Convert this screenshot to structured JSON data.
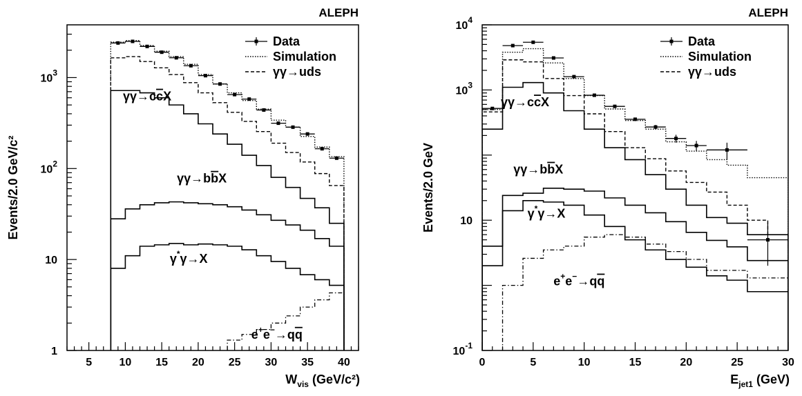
{
  "chart_data": [
    {
      "type": "line",
      "experiment_label": "ALEPH",
      "ylabel": "Events/2.0 GeV/c²",
      "xlabel": "W",
      "xlabel_sub": "vis",
      "xlabel_unit": " (GeV/c²)",
      "x_range": [
        2,
        42
      ],
      "y_range": [
        1,
        3800
      ],
      "y_scale": "log",
      "x_ticks": [
        {
          "v": 5,
          "t": "5"
        },
        {
          "v": 10,
          "t": "10"
        },
        {
          "v": 15,
          "t": "15"
        },
        {
          "v": 20,
          "t": "20"
        },
        {
          "v": 25,
          "t": "25"
        },
        {
          "v": 30,
          "t": "30"
        },
        {
          "v": 35,
          "t": "35"
        },
        {
          "v": 40,
          "t": "40"
        }
      ],
      "y_ticks": [
        {
          "v": 1,
          "t": "1"
        },
        {
          "v": 10,
          "t": "10"
        },
        {
          "v": 100,
          "t": "10",
          "sup": "2"
        },
        {
          "v": 1000,
          "t": "10",
          "sup": "3"
        }
      ],
      "legend": [
        {
          "label": "Data",
          "kind": "data"
        },
        {
          "label": "Simulation",
          "kind": "dotted"
        },
        {
          "label": "γγ→uds",
          "kind": "dashed"
        }
      ],
      "bin_edges": [
        8,
        10,
        12,
        14,
        16,
        18,
        20,
        22,
        24,
        26,
        28,
        30,
        32,
        34,
        36,
        38,
        40
      ],
      "series": [
        {
          "key": "simulation",
          "style": "dotted",
          "values": [
            2450,
            2550,
            2250,
            1950,
            1700,
            1400,
            1080,
            850,
            680,
            560,
            450,
            340,
            285,
            225,
            172,
            135
          ]
        },
        {
          "key": "uds",
          "style": "dashed",
          "values": [
            1650,
            1700,
            1500,
            1280,
            1080,
            880,
            680,
            530,
            415,
            330,
            255,
            190,
            150,
            118,
            88,
            65
          ]
        },
        {
          "key": "ccX",
          "style": "solid",
          "values": [
            720,
            720,
            680,
            600,
            500,
            400,
            310,
            240,
            185,
            140,
            108,
            80,
            62,
            47,
            37,
            25
          ]
        },
        {
          "key": "bbX",
          "style": "solid",
          "values": [
            28,
            36,
            40,
            42,
            43,
            42,
            41,
            40,
            38,
            35,
            31,
            27,
            24,
            21,
            17,
            14
          ]
        },
        {
          "key": "gstarX",
          "style": "solid",
          "values": [
            8,
            11,
            14,
            14.5,
            15,
            14.5,
            14.8,
            14.5,
            14,
            12.8,
            11,
            9.5,
            8,
            6.8,
            6,
            5.2
          ]
        },
        {
          "key": "ee_qq",
          "style": "dashdot",
          "values": [
            null,
            null,
            null,
            null,
            null,
            null,
            null,
            null,
            1.3,
            1.5,
            1.7,
            2.0,
            2.4,
            3.0,
            3.6,
            4.3
          ]
        }
      ],
      "data_points": [
        {
          "x": 9,
          "y": 2400
        },
        {
          "x": 11,
          "y": 2500
        },
        {
          "x": 13,
          "y": 2200
        },
        {
          "x": 15,
          "y": 1900
        },
        {
          "x": 17,
          "y": 1650
        },
        {
          "x": 19,
          "y": 1350
        },
        {
          "x": 21,
          "y": 1050
        },
        {
          "x": 23,
          "y": 850
        },
        {
          "x": 25,
          "y": 650
        },
        {
          "x": 27,
          "y": 580
        },
        {
          "x": 29,
          "y": 440
        },
        {
          "x": 31,
          "y": 315
        },
        {
          "x": 33,
          "y": 285
        },
        {
          "x": 35,
          "y": 240
        },
        {
          "x": 37,
          "y": 165
        },
        {
          "x": 39,
          "y": 130
        }
      ],
      "annotations": [
        {
          "key": "ccX",
          "base": "γγ→c",
          "bar": "c",
          "rest": "X",
          "x": 13,
          "y": 560
        },
        {
          "key": "bbX",
          "base": "γγ→b",
          "bar": "b",
          "rest": "X",
          "x": 20.5,
          "y": 70
        },
        {
          "key": "gstarX",
          "base": "γ",
          "sup": "*",
          "rest": "γ→X",
          "x": 18.7,
          "y": 9.2
        },
        {
          "key": "ee_qq",
          "base": "e",
          "sup": "+",
          "base2": "e",
          "sup2": "−",
          "rest": "→q",
          "bar": "q",
          "x": 30.8,
          "y": 1.35
        }
      ]
    },
    {
      "type": "line",
      "experiment_label": "ALEPH",
      "ylabel": "Events/2.0 GeV",
      "xlabel": "E",
      "xlabel_sub": "jet1",
      "xlabel_unit": " (GeV)",
      "x_range": [
        0,
        30
      ],
      "y_range": [
        0.1,
        10000
      ],
      "y_scale": "log",
      "x_ticks": [
        {
          "v": 0,
          "t": "0"
        },
        {
          "v": 5,
          "t": "5"
        },
        {
          "v": 10,
          "t": "10"
        },
        {
          "v": 15,
          "t": "15"
        },
        {
          "v": 20,
          "t": "20"
        },
        {
          "v": 25,
          "t": "25"
        },
        {
          "v": 30,
          "t": "30"
        }
      ],
      "y_ticks": [
        {
          "v": 0.1,
          "t": "10",
          "sup": "-1"
        },
        {
          "v": 10,
          "t": "10"
        },
        {
          "v": 1000,
          "t": "10",
          "sup": "3"
        },
        {
          "v": 10000,
          "t": "10",
          "sup": "4"
        }
      ],
      "legend": [
        {
          "label": "Data",
          "kind": "data"
        },
        {
          "label": "Simulation",
          "kind": "dotted"
        },
        {
          "label": "γγ→uds",
          "kind": "dashed"
        }
      ],
      "bin_edges": [
        0,
        2,
        4,
        6,
        8,
        10,
        12,
        14,
        16,
        18,
        20,
        22,
        24,
        26,
        28,
        30
      ],
      "series": [
        {
          "key": "simulation",
          "style": "dotted",
          "values": [
            500,
            3800,
            4300,
            2600,
            1500,
            820,
            510,
            340,
            250,
            160,
            115,
            85,
            70,
            45,
            45
          ]
        },
        {
          "key": "uds",
          "style": "dashed",
          "values": [
            460,
            2900,
            2700,
            1500,
            820,
            430,
            230,
            130,
            88,
            57,
            38,
            27,
            17,
            10,
            6
          ]
        },
        {
          "key": "ccX",
          "style": "solid",
          "values": [
            250,
            1100,
            1300,
            900,
            480,
            250,
            130,
            85,
            50,
            30,
            17,
            11,
            9,
            6,
            6
          ]
        },
        {
          "key": "bbX",
          "style": "solid",
          "values": [
            4,
            24,
            26,
            31,
            30,
            28,
            22,
            17,
            13,
            9.5,
            6.5,
            4.9,
            3.9,
            2.4,
            2.4
          ]
        },
        {
          "key": "gstarX",
          "style": "solid",
          "values": [
            2,
            14,
            20,
            19,
            17,
            12,
            8,
            5,
            3.5,
            2.5,
            1.9,
            1.4,
            1.2,
            0.8,
            0.8
          ]
        },
        {
          "key": "ee_qq",
          "style": "dashdot",
          "values": [
            null,
            1,
            2.6,
            3.5,
            4,
            5.5,
            6,
            5.5,
            4.3,
            3.3,
            2.5,
            1.7,
            1.7,
            1.3,
            1.3
          ]
        }
      ],
      "data_points": [
        {
          "x": 1,
          "y": 520,
          "xerr": 1,
          "yerr": [
            20,
            20
          ]
        },
        {
          "x": 3,
          "y": 4800,
          "xerr": 1,
          "yerr": [
            70,
            70
          ]
        },
        {
          "x": 5,
          "y": 5400,
          "xerr": 1,
          "yerr": [
            70,
            70
          ]
        },
        {
          "x": 7,
          "y": 3100,
          "xerr": 1,
          "yerr": [
            55,
            55
          ]
        },
        {
          "x": 9,
          "y": 1600,
          "xerr": 1,
          "yerr": [
            40,
            40
          ]
        },
        {
          "x": 11,
          "y": 830,
          "xerr": 1,
          "yerr": [
            30,
            30
          ]
        },
        {
          "x": 13,
          "y": 560,
          "xerr": 1,
          "yerr": [
            25,
            25
          ]
        },
        {
          "x": 15,
          "y": 355,
          "xerr": 1,
          "yerr": [
            20,
            20
          ]
        },
        {
          "x": 17,
          "y": 270,
          "xerr": 1,
          "yerr": [
            20,
            20
          ]
        },
        {
          "x": 19,
          "y": 180,
          "xerr": 1,
          "yerr": [
            25,
            25
          ]
        },
        {
          "x": 21,
          "y": 140,
          "xerr": 1,
          "yerr": [
            25,
            25
          ]
        },
        {
          "x": 24,
          "y": 120,
          "xerr": 2,
          "yerr": [
            35,
            35
          ]
        },
        {
          "x": 28,
          "y": 5,
          "xerr": 2,
          "yerr": [
            3,
            4.2
          ]
        }
      ],
      "annotations": [
        {
          "key": "ccX",
          "base": "γγ→c",
          "bar": "c",
          "rest": "X",
          "x": 4.2,
          "y": 560
        },
        {
          "key": "bbX",
          "base": "γγ→b",
          "bar": "b",
          "rest": "X",
          "x": 5.5,
          "y": 52
        },
        {
          "key": "gstarX",
          "base": "γ",
          "sup": "*",
          "rest": "γ→X",
          "x": 6.3,
          "y": 11
        },
        {
          "key": "ee_qq",
          "base": "e",
          "sup": "+",
          "base2": "e",
          "sup2": "−",
          "rest": "→q",
          "bar": "q",
          "x": 9.5,
          "y": 1.0
        }
      ]
    }
  ]
}
